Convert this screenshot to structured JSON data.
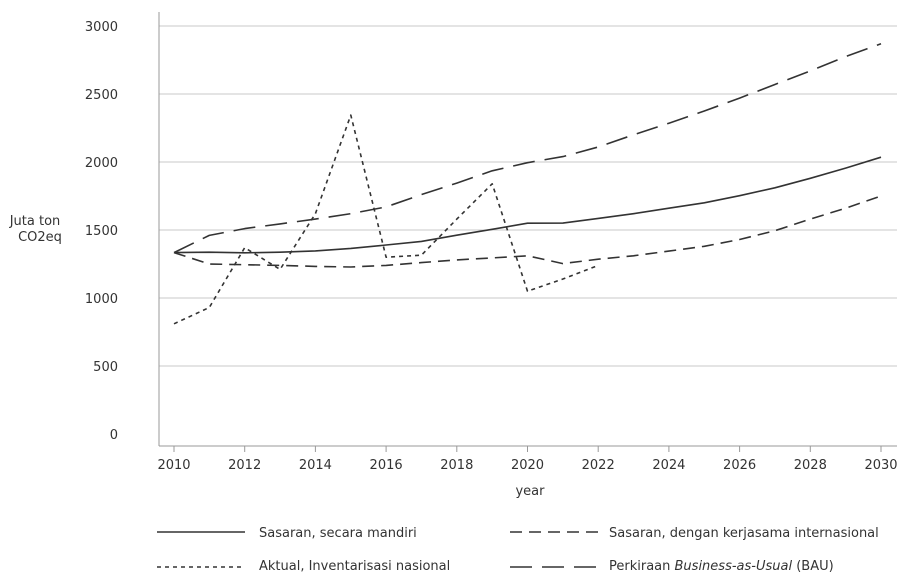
{
  "chart_data": {
    "type": "line",
    "title": "",
    "xlabel": "year",
    "ylabel_lines": [
      "Juta ton",
      "CO2eq"
    ],
    "xlim": [
      2010,
      2030
    ],
    "ylim": [
      0,
      3000
    ],
    "x_ticks": [
      2010,
      2012,
      2014,
      2016,
      2018,
      2020,
      2022,
      2024,
      2026,
      2028,
      2030
    ],
    "y_ticks": [
      0,
      500,
      1000,
      1500,
      2000,
      2500,
      3000
    ],
    "grid": "horizontal",
    "legend_position": "bottom",
    "line_color": "#333333",
    "series": [
      {
        "name": "Sasaran, secara mandiri",
        "style": "solid",
        "points": [
          [
            2010,
            1334
          ],
          [
            2011,
            1337
          ],
          [
            2012,
            1332
          ],
          [
            2013,
            1337
          ],
          [
            2014,
            1346
          ],
          [
            2015,
            1365
          ],
          [
            2016,
            1390
          ],
          [
            2017,
            1416
          ],
          [
            2018,
            1462
          ],
          [
            2019,
            1505
          ],
          [
            2020,
            1550
          ],
          [
            2021,
            1551
          ],
          [
            2022,
            1585
          ],
          [
            2023,
            1620
          ],
          [
            2024,
            1660
          ],
          [
            2025,
            1700
          ],
          [
            2026,
            1752
          ],
          [
            2027,
            1810
          ],
          [
            2028,
            1880
          ],
          [
            2029,
            1955
          ],
          [
            2030,
            2035
          ]
        ]
      },
      {
        "name": "Sasaran, dengan kerjasama internasional",
        "style": "dashed",
        "points": [
          [
            2010,
            1334
          ],
          [
            2011,
            1250
          ],
          [
            2012,
            1245
          ],
          [
            2013,
            1240
          ],
          [
            2014,
            1232
          ],
          [
            2015,
            1228
          ],
          [
            2016,
            1240
          ],
          [
            2017,
            1260
          ],
          [
            2018,
            1280
          ],
          [
            2019,
            1295
          ],
          [
            2020,
            1310
          ],
          [
            2021,
            1253
          ],
          [
            2022,
            1285
          ],
          [
            2023,
            1310
          ],
          [
            2024,
            1345
          ],
          [
            2025,
            1380
          ],
          [
            2026,
            1430
          ],
          [
            2027,
            1495
          ],
          [
            2028,
            1580
          ],
          [
            2029,
            1660
          ],
          [
            2030,
            1750
          ]
        ]
      },
      {
        "name": "Aktual, Inventarisasi nasional",
        "style": "dotted",
        "points": [
          [
            2010,
            810
          ],
          [
            2011,
            930
          ],
          [
            2012,
            1370
          ],
          [
            2013,
            1210
          ],
          [
            2014,
            1620
          ],
          [
            2015,
            2345
          ],
          [
            2016,
            1300
          ],
          [
            2017,
            1315
          ],
          [
            2018,
            1580
          ],
          [
            2019,
            1840
          ],
          [
            2020,
            1050
          ],
          [
            2021,
            1140
          ],
          [
            2022,
            1240
          ]
        ]
      },
      {
        "name_prefix": "Perkiraan ",
        "name_italic": "Business-as-Usual",
        "name_suffix": " (BAU)",
        "style": "longdash",
        "points": [
          [
            2010,
            1334
          ],
          [
            2011,
            1460
          ],
          [
            2012,
            1510
          ],
          [
            2013,
            1545
          ],
          [
            2014,
            1580
          ],
          [
            2015,
            1620
          ],
          [
            2016,
            1670
          ],
          [
            2017,
            1760
          ],
          [
            2018,
            1845
          ],
          [
            2019,
            1935
          ],
          [
            2020,
            1995
          ],
          [
            2021,
            2040
          ],
          [
            2022,
            2110
          ],
          [
            2023,
            2200
          ],
          [
            2024,
            2285
          ],
          [
            2025,
            2375
          ],
          [
            2026,
            2470
          ],
          [
            2027,
            2570
          ],
          [
            2028,
            2670
          ],
          [
            2029,
            2775
          ],
          [
            2030,
            2870
          ]
        ]
      }
    ]
  }
}
